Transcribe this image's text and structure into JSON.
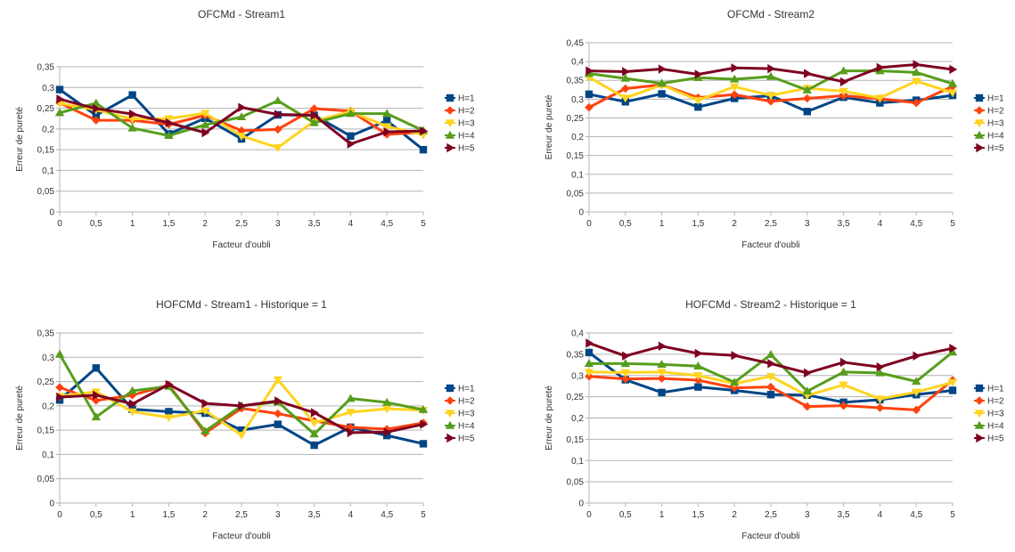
{
  "chart_data": [
    {
      "type": "line",
      "title": "OFCMd - Stream1",
      "xlabel": "Facteur d'oubli",
      "ylabel": "Erreur de pureté",
      "x": [
        "0",
        "0,5",
        "1",
        "1,5",
        "2",
        "2,5",
        "3",
        "3,5",
        "4",
        "4,5",
        "5"
      ],
      "yticks": [
        "0",
        "0,05",
        "0,1",
        "0,15",
        "0,2",
        "0,25",
        "0,3",
        "0,35"
      ],
      "ylim": [
        0,
        0.35
      ],
      "grid": true,
      "legend": "right",
      "series": [
        {
          "name": "H=1",
          "color": "#004586",
          "marker": "square",
          "values": [
            0.295,
            0.233,
            0.282,
            0.188,
            0.226,
            0.176,
            0.234,
            0.233,
            0.183,
            0.22,
            0.15
          ]
        },
        {
          "name": "H=2",
          "color": "#ff420e",
          "marker": "diamond",
          "values": [
            0.263,
            0.221,
            0.221,
            0.211,
            0.233,
            0.196,
            0.199,
            0.249,
            0.243,
            0.187,
            0.192
          ]
        },
        {
          "name": "H=3",
          "color": "#ffd320",
          "marker": "triangle-down",
          "values": [
            0.262,
            0.246,
            0.224,
            0.225,
            0.238,
            0.183,
            0.155,
            0.219,
            0.242,
            0.206,
            0.186
          ]
        },
        {
          "name": "H=4",
          "color": "#579d1c",
          "marker": "triangle-up",
          "values": [
            0.239,
            0.262,
            0.202,
            0.184,
            0.21,
            0.229,
            0.268,
            0.215,
            0.237,
            0.237,
            0.196
          ]
        },
        {
          "name": "H=5",
          "color": "#7e0021",
          "marker": "triangle-right",
          "values": [
            0.272,
            0.249,
            0.236,
            0.215,
            0.191,
            0.252,
            0.235,
            0.233,
            0.164,
            0.193,
            0.195
          ]
        }
      ]
    },
    {
      "type": "line",
      "title": "OFCMd - Stream2",
      "xlabel": "Facteur d'oubli",
      "ylabel": "Erreur de pureté",
      "x": [
        "0",
        "0,5",
        "1",
        "1,5",
        "2",
        "2,5",
        "3",
        "3,5",
        "4",
        "4,5",
        "5"
      ],
      "yticks": [
        "0",
        "0,05",
        "0,1",
        "0,15",
        "0,2",
        "0,25",
        "0,3",
        "0,35",
        "0,4",
        "0,45"
      ],
      "ylim": [
        0,
        0.45
      ],
      "grid": true,
      "legend": "right",
      "series": [
        {
          "name": "H=1",
          "color": "#004586",
          "marker": "square",
          "values": [
            0.313,
            0.293,
            0.314,
            0.279,
            0.302,
            0.309,
            0.267,
            0.305,
            0.29,
            0.297,
            0.31
          ]
        },
        {
          "name": "H=2",
          "color": "#ff420e",
          "marker": "diamond",
          "values": [
            0.278,
            0.328,
            0.338,
            0.304,
            0.312,
            0.294,
            0.302,
            0.309,
            0.301,
            0.29,
            0.334
          ]
        },
        {
          "name": "H=3",
          "color": "#ffd320",
          "marker": "triangle-down",
          "values": [
            0.358,
            0.303,
            0.338,
            0.297,
            0.333,
            0.31,
            0.329,
            0.321,
            0.303,
            0.348,
            0.317
          ]
        },
        {
          "name": "H=4",
          "color": "#579d1c",
          "marker": "triangle-up",
          "values": [
            0.368,
            0.355,
            0.342,
            0.357,
            0.353,
            0.36,
            0.324,
            0.375,
            0.375,
            0.371,
            0.341
          ]
        },
        {
          "name": "H=5",
          "color": "#7e0021",
          "marker": "triangle-right",
          "values": [
            0.375,
            0.373,
            0.38,
            0.366,
            0.383,
            0.381,
            0.368,
            0.346,
            0.384,
            0.392,
            0.379
          ]
        }
      ]
    },
    {
      "type": "line",
      "title": "HOFCMd - Stream1 - Historique = 1",
      "xlabel": "Facteur d'oubli",
      "ylabel": "Erreur de pureté",
      "x": [
        "0",
        "0,5",
        "1",
        "1,5",
        "2",
        "2,5",
        "3",
        "3,5",
        "4",
        "4,5",
        "5"
      ],
      "yticks": [
        "0",
        "0,05",
        "0,1",
        "0,15",
        "0,2",
        "0,25",
        "0,3",
        "0,35"
      ],
      "ylim": [
        0,
        0.35
      ],
      "grid": true,
      "legend": "right",
      "series": [
        {
          "name": "H=1",
          "color": "#004586",
          "marker": "square",
          "values": [
            0.212,
            0.278,
            0.193,
            0.188,
            0.185,
            0.15,
            0.162,
            0.119,
            0.156,
            0.139,
            0.122
          ]
        },
        {
          "name": "H=2",
          "color": "#ff420e",
          "marker": "diamond",
          "values": [
            0.238,
            0.211,
            0.222,
            0.243,
            0.144,
            0.195,
            0.184,
            0.169,
            0.156,
            0.152,
            0.165
          ]
        },
        {
          "name": "H=3",
          "color": "#ffd320",
          "marker": "triangle-down",
          "values": [
            0.22,
            0.229,
            0.188,
            0.176,
            0.19,
            0.14,
            0.254,
            0.165,
            0.187,
            0.194,
            0.191
          ]
        },
        {
          "name": "H=4",
          "color": "#579d1c",
          "marker": "triangle-up",
          "values": [
            0.306,
            0.177,
            0.231,
            0.24,
            0.148,
            0.2,
            0.208,
            0.142,
            0.215,
            0.207,
            0.192
          ]
        },
        {
          "name": "H=5",
          "color": "#7e0021",
          "marker": "triangle-right",
          "values": [
            0.218,
            0.222,
            0.204,
            0.244,
            0.205,
            0.2,
            0.21,
            0.186,
            0.145,
            0.146,
            0.162
          ]
        }
      ]
    },
    {
      "type": "line",
      "title": "HOFCMd - Stream2 - Historique = 1",
      "xlabel": "Facteur d'oubli",
      "ylabel": "Erreur de pureté",
      "x": [
        "0",
        "0,5",
        "1",
        "1,5",
        "2",
        "2,5",
        "3",
        "3,5",
        "4",
        "4,5",
        "5"
      ],
      "yticks": [
        "0",
        "0,05",
        "0,1",
        "0,15",
        "0,2",
        "0,25",
        "0,3",
        "0,35",
        "0,4"
      ],
      "ylim": [
        0,
        0.4
      ],
      "grid": true,
      "legend": "right",
      "series": [
        {
          "name": "H=1",
          "color": "#004586",
          "marker": "square",
          "values": [
            0.354,
            0.29,
            0.26,
            0.273,
            0.265,
            0.255,
            0.254,
            0.237,
            0.243,
            0.255,
            0.265
          ]
        },
        {
          "name": "H=2",
          "color": "#ff420e",
          "marker": "diamond",
          "values": [
            0.298,
            0.292,
            0.293,
            0.289,
            0.271,
            0.273,
            0.227,
            0.229,
            0.224,
            0.219,
            0.289
          ]
        },
        {
          "name": "H=3",
          "color": "#ffd320",
          "marker": "triangle-down",
          "values": [
            0.308,
            0.307,
            0.308,
            0.3,
            0.281,
            0.298,
            0.253,
            0.278,
            0.245,
            0.261,
            0.284
          ]
        },
        {
          "name": "H=4",
          "color": "#579d1c",
          "marker": "triangle-up",
          "values": [
            0.328,
            0.328,
            0.326,
            0.322,
            0.284,
            0.349,
            0.263,
            0.308,
            0.306,
            0.286,
            0.355
          ]
        },
        {
          "name": "H=5",
          "color": "#7e0021",
          "marker": "triangle-right",
          "values": [
            0.376,
            0.346,
            0.369,
            0.352,
            0.347,
            0.328,
            0.306,
            0.331,
            0.32,
            0.346,
            0.364
          ]
        }
      ]
    }
  ]
}
